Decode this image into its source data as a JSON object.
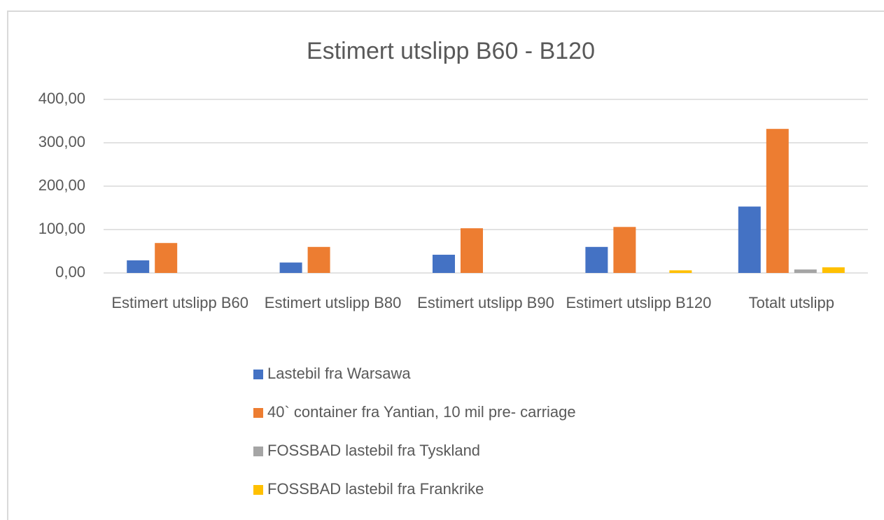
{
  "chart_data": {
    "type": "bar",
    "title": "Estimert utslipp B60 - B120",
    "categories": [
      "Estimert utslipp B60",
      "Estimert utslipp B80",
      "Estimert utslipp B90",
      "Estimert utslipp B120",
      "Totalt utslipp"
    ],
    "series": [
      {
        "name": "Lastebil fra Warsawa",
        "color": "#4472c4",
        "values": [
          29,
          24,
          42,
          60,
          153
        ]
      },
      {
        "name": "40` container fra Yantian, 10 mil pre- carriage",
        "color": "#ed7d31",
        "values": [
          69,
          60,
          103,
          106,
          332
        ]
      },
      {
        "name": "FOSSBAD lastebil fra Tyskland",
        "color": "#a5a5a5",
        "values": [
          0,
          0,
          0,
          0,
          8
        ]
      },
      {
        "name": "FOSSBAD lastebil fra Frankrike",
        "color": "#ffc000",
        "values": [
          0,
          0,
          0,
          6,
          13
        ]
      }
    ],
    "ylim": [
      0,
      400
    ],
    "yticks": [
      {
        "value": 0,
        "label": "0,00"
      },
      {
        "value": 100,
        "label": "100,00"
      },
      {
        "value": 200,
        "label": "200,00"
      },
      {
        "value": 300,
        "label": "300,00"
      },
      {
        "value": 400,
        "label": "400,00"
      }
    ],
    "grid": true,
    "legend": "bottom"
  }
}
